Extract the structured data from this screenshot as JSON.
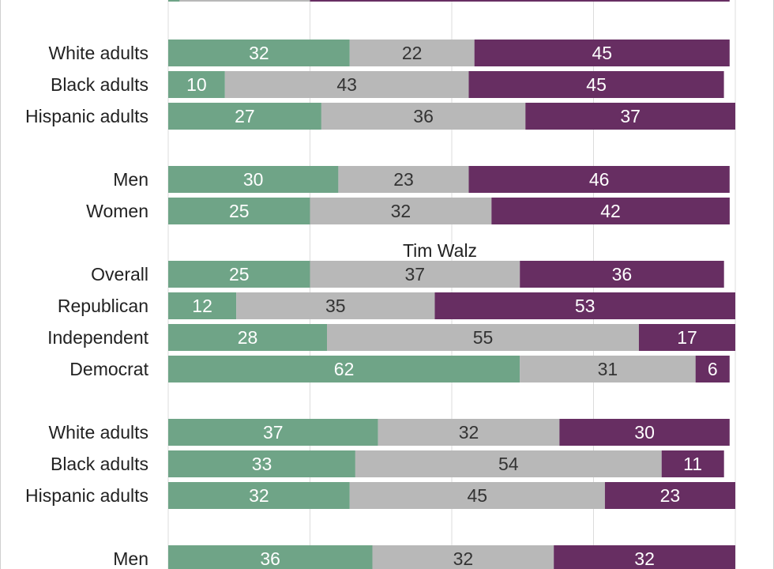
{
  "chart_data": {
    "type": "bar",
    "stacked": true,
    "orientation": "horizontal",
    "xlim": [
      0,
      100
    ],
    "grid": true,
    "segment_colors": [
      "#6fa487",
      "#b8b8b8",
      "#672e62"
    ],
    "segment_label_colors": [
      "#ffffff",
      "#333333",
      "#ffffff"
    ],
    "rows": [
      {
        "category": "",
        "values": [
          2,
          23,
          74
        ],
        "clipped": true
      },
      {
        "category": "White adults",
        "values": [
          32,
          22,
          45
        ]
      },
      {
        "category": "Black adults",
        "values": [
          10,
          43,
          45
        ]
      },
      {
        "category": "Hispanic adults",
        "values": [
          27,
          36,
          37
        ]
      },
      {
        "category": "Men",
        "values": [
          30,
          23,
          46
        ]
      },
      {
        "category": "Women",
        "values": [
          25,
          32,
          42
        ]
      },
      {
        "category": "Overall",
        "values": [
          25,
          37,
          36
        ]
      },
      {
        "category": "Republican",
        "values": [
          12,
          35,
          53
        ]
      },
      {
        "category": "Independent",
        "values": [
          28,
          55,
          17
        ]
      },
      {
        "category": "Democrat",
        "values": [
          62,
          31,
          6
        ]
      },
      {
        "category": "White adults",
        "values": [
          37,
          32,
          30
        ]
      },
      {
        "category": "Black adults",
        "values": [
          33,
          54,
          11
        ]
      },
      {
        "category": "Hispanic adults",
        "values": [
          32,
          45,
          23
        ]
      },
      {
        "category": "Men",
        "values": [
          36,
          32,
          32
        ]
      }
    ],
    "section_titles": [
      {
        "text": "Tim Walz",
        "before_row": 6
      }
    ]
  }
}
